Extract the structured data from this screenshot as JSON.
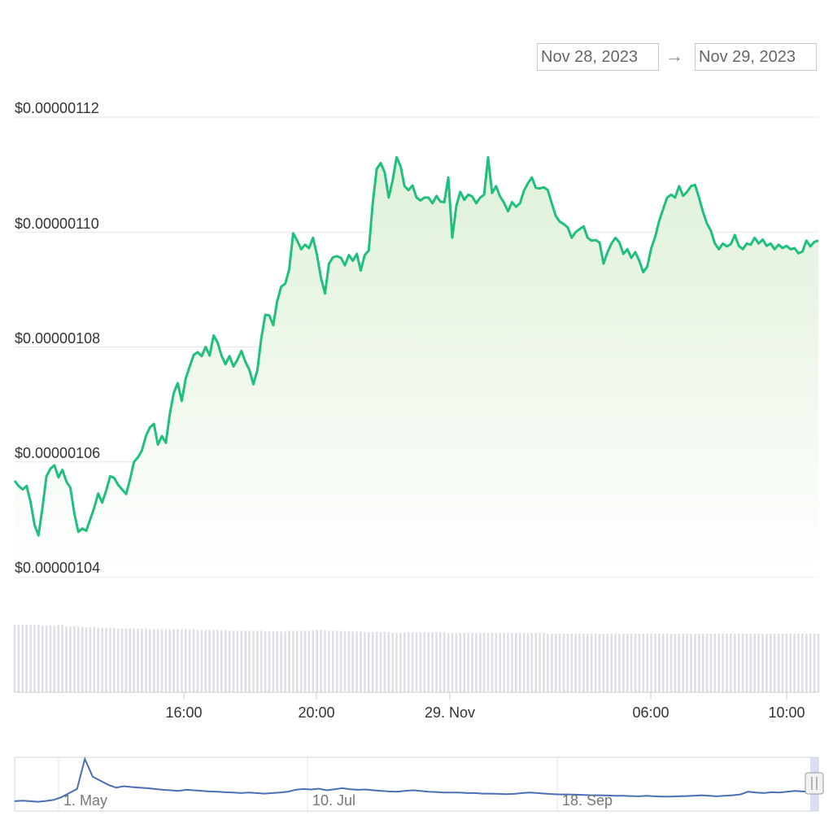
{
  "date_range": {
    "from": "Nov 28, 2023",
    "to": "Nov 29, 2023",
    "arrow": "→"
  },
  "chart_data": {
    "type": "area",
    "title": "",
    "y_ticks": [
      "$0.00000104",
      "$0.00000106",
      "$0.00000108",
      "$0.00000110",
      "$0.00000112"
    ],
    "x_ticks": [
      "16:00",
      "20:00",
      "29. Nov",
      "06:00",
      "10:00"
    ],
    "ylim": [
      1.04e-06,
      1.12e-06
    ],
    "grid": true,
    "colors": {
      "line": "#1fbf7e",
      "fill_top": "#dff1d8",
      "volume": "#dde0e5",
      "navigator_line": "#4a6fb5"
    },
    "series": [
      {
        "values": [
          1.0567e-06,
          1.0558e-06,
          1.0552e-06,
          1.0558e-06,
          1.053e-06,
          1.049e-06,
          1.0472e-06,
          1.052e-06,
          1.0575e-06,
          1.0588e-06,
          1.0594e-06,
          1.0573e-06,
          1.0586e-06,
          1.0566e-06,
          1.0555e-06,
          1.051e-06,
          1.0478e-06,
          1.0484e-06,
          1.048e-06,
          1.05e-06,
          1.052e-06,
          1.0545e-06,
          1.0529e-06,
          1.055e-06,
          1.0575e-06,
          1.0572e-06,
          1.056e-06,
          1.0552e-06,
          1.0544e-06,
          1.0569e-06,
          1.06e-06,
          1.0608e-06,
          1.062e-06,
          1.0645e-06,
          1.066e-06,
          1.0666e-06,
          1.063e-06,
          1.0645e-06,
          1.0633e-06,
          1.0684e-06,
          1.072e-06,
          1.0737e-06,
          1.0706e-06,
          1.0745e-06,
          1.0766e-06,
          1.0786e-06,
          1.0791e-06,
          1.0784e-06,
          1.08e-06,
          1.0785e-06,
          1.082e-06,
          1.0808e-06,
          1.0785e-06,
          1.077e-06,
          1.0784e-06,
          1.0766e-06,
          1.0778e-06,
          1.0793e-06,
          1.0774e-06,
          1.076e-06,
          1.0735e-06,
          1.076e-06,
          1.0815e-06,
          1.0856e-06,
          1.0855e-06,
          1.0838e-06,
          1.088e-06,
          1.0905e-06,
          1.091e-06,
          1.0935e-06,
          1.0998e-06,
          1.0985e-06,
          1.097e-06,
          1.0978e-06,
          1.0972e-06,
          1.099e-06,
          1.096e-06,
          1.092e-06,
          1.0893e-06,
          1.0945e-06,
          1.0956e-06,
          1.0958e-06,
          1.0955e-06,
          1.0942e-06,
          1.096e-06,
          1.095e-06,
          1.0962e-06,
          1.0933e-06,
          1.096e-06,
          1.0968e-06,
          1.105e-06,
          1.111e-06,
          1.112e-06,
          1.1104e-06,
          1.106e-06,
          1.109e-06,
          1.113e-06,
          1.1115e-06,
          1.108e-06,
          1.1073e-06,
          1.1081e-06,
          1.106e-06,
          1.1055e-06,
          1.106e-06,
          1.106e-06,
          1.105e-06,
          1.1063e-06,
          1.1053e-06,
          1.1052e-06,
          1.1095e-06,
          1.099e-06,
          1.1045e-06,
          1.107e-06,
          1.1056e-06,
          1.1065e-06,
          1.1062e-06,
          1.105e-06,
          1.106e-06,
          1.1065e-06,
          1.113e-06,
          1.1068e-06,
          1.108e-06,
          1.1062e-06,
          1.1051e-06,
          1.1036e-06,
          1.1052e-06,
          1.1044e-06,
          1.105e-06,
          1.1072e-06,
          1.1085e-06,
          1.1095e-06,
          1.1077e-06,
          1.1076e-06,
          1.1078e-06,
          1.1073e-06,
          1.105e-06,
          1.1028e-06,
          1.1018e-06,
          1.1014e-06,
          1.1008e-06,
          1.099e-06,
          1.1e-06,
          1.1005e-06,
          1.101e-06,
          1.099e-06,
          1.0985e-06,
          1.0986e-06,
          1.0982e-06,
          1.0945e-06,
          1.0965e-06,
          1.098e-06,
          1.099e-06,
          1.0982e-06,
          1.0962e-06,
          1.097e-06,
          1.0955e-06,
          1.0965e-06,
          1.095e-06,
          1.093e-06,
          1.094e-06,
          1.0972e-06,
          1.0992e-06,
          1.102e-06,
          1.104e-06,
          1.106e-06,
          1.1065e-06,
          1.106e-06,
          1.108e-06,
          1.1063e-06,
          1.107e-06,
          1.108e-06,
          1.1082e-06,
          1.106e-06,
          1.1035e-06,
          1.1015e-06,
          1.1002e-06,
          1.098e-06,
          1.097e-06,
          1.098e-06,
          1.0975e-06,
          1.0979e-06,
          1.0995e-06,
          1.0976e-06,
          1.097e-06,
          1.098e-06,
          1.0978e-06,
          1.099e-06,
          1.098e-06,
          1.0987e-06,
          1.0976e-06,
          1.098e-06,
          1.097e-06,
          1.0978e-06,
          1.0972e-06,
          1.0976e-06,
          1.097e-06,
          1.0972e-06,
          1.0963e-06,
          1.0966e-06,
          1.0985e-06,
          1.0975e-06,
          1.0983e-06,
          1.0985e-06
        ]
      }
    ],
    "volume": [
      92,
      92,
      92,
      92,
      92,
      92,
      92,
      91,
      91,
      91,
      91,
      92,
      92,
      90,
      90,
      90,
      90,
      89,
      89,
      89,
      89,
      88,
      88,
      88,
      88,
      88,
      87,
      87,
      87,
      87,
      87,
      87,
      87,
      87,
      86,
      86,
      86,
      86,
      86,
      86,
      86,
      86,
      86,
      86,
      86,
      86,
      85,
      85,
      85,
      85,
      85,
      85,
      85,
      85,
      84,
      84,
      84,
      84,
      84,
      84,
      84,
      84,
      84,
      83,
      83,
      83,
      83,
      83,
      83,
      84,
      84,
      84,
      84,
      84,
      84,
      85,
      85,
      85,
      85,
      84,
      84,
      84,
      84,
      83,
      83,
      83,
      83,
      83,
      82,
      82,
      82,
      82,
      82,
      82,
      82,
      81,
      81,
      81,
      82,
      82,
      82,
      82,
      82,
      82,
      82,
      82,
      82,
      82,
      82,
      81,
      81,
      81,
      81,
      81,
      81,
      81,
      81,
      81,
      81,
      81,
      81,
      81,
      81,
      81,
      81,
      81,
      81,
      81,
      81,
      81,
      81,
      81,
      81,
      81,
      80,
      80,
      80,
      80,
      80,
      80,
      80,
      80,
      80,
      80,
      80,
      80,
      80,
      80,
      80,
      80,
      80,
      80,
      80,
      80,
      80,
      80,
      80,
      80,
      80,
      80,
      80,
      80,
      80,
      80,
      80,
      80,
      80,
      80,
      80,
      80,
      80,
      80,
      80,
      80,
      80,
      80,
      80,
      80,
      80,
      80,
      80,
      80,
      80,
      80,
      80,
      80,
      80,
      80,
      80,
      80,
      80,
      80,
      80,
      80,
      80,
      80,
      80,
      80,
      80,
      80,
      80,
      80,
      80
    ],
    "navigator": {
      "labels": [
        "1. May",
        "10. Jul",
        "18. Sep"
      ],
      "values": [
        0.3,
        0.32,
        0.3,
        0.28,
        0.31,
        0.35,
        0.45,
        0.6,
        0.75,
        1.85,
        1.2,
        1.05,
        0.9,
        0.8,
        0.85,
        0.82,
        0.8,
        0.78,
        0.75,
        0.72,
        0.7,
        0.68,
        0.72,
        0.7,
        0.68,
        0.66,
        0.65,
        0.63,
        0.62,
        0.6,
        0.62,
        0.6,
        0.58,
        0.6,
        0.62,
        0.65,
        0.72,
        0.75,
        0.73,
        0.76,
        0.7,
        0.74,
        0.78,
        0.74,
        0.72,
        0.73,
        0.7,
        0.68,
        0.66,
        0.65,
        0.68,
        0.7,
        0.68,
        0.65,
        0.64,
        0.62,
        0.62,
        0.62,
        0.6,
        0.6,
        0.58,
        0.58,
        0.57,
        0.56,
        0.57,
        0.6,
        0.62,
        0.6,
        0.58,
        0.56,
        0.55,
        0.55,
        0.54,
        0.53,
        0.52,
        0.52,
        0.51,
        0.5,
        0.5,
        0.49,
        0.48,
        0.5,
        0.48,
        0.47,
        0.47,
        0.48,
        0.49,
        0.5,
        0.52,
        0.5,
        0.48,
        0.5,
        0.52,
        0.55,
        0.65,
        0.62,
        0.6,
        0.63,
        0.62,
        0.65,
        0.68,
        0.66,
        0.64,
        0.66
      ]
    }
  }
}
